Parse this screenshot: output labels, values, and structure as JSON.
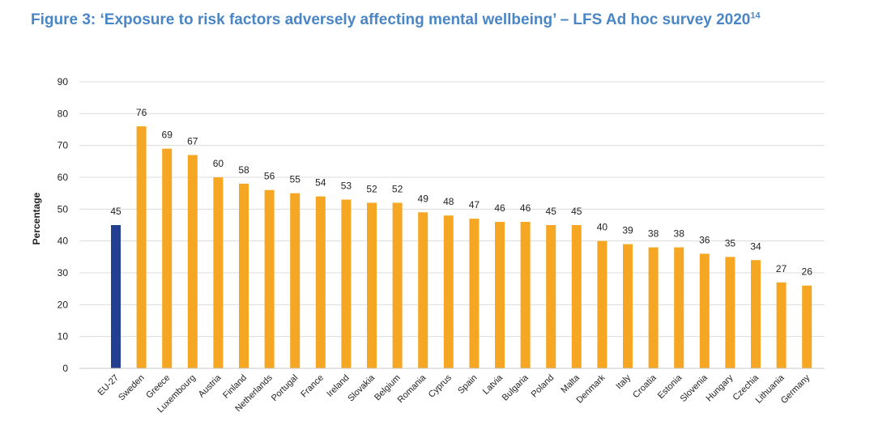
{
  "title": {
    "text": "Figure 3: ‘Exposure to risk factors adversely affecting mental wellbeing’ – LFS Ad hoc survey 2020",
    "footnote": "14"
  },
  "colors": {
    "highlight": "#233f8f",
    "bar": "#f5a623",
    "grid": "#dcdcdc",
    "title": "#4a86c5"
  },
  "chart_data": {
    "type": "bar",
    "title": "Figure 3: ‘Exposure to risk factors adversely affecting mental wellbeing’ – LFS Ad hoc survey 2020",
    "xlabel": "",
    "ylabel": "Percentage",
    "ylim": [
      0,
      90
    ],
    "yticks": [
      0,
      10,
      20,
      30,
      40,
      50,
      60,
      70,
      80,
      90
    ],
    "grid": true,
    "highlight_category": "EU-27",
    "categories": [
      "EU-27",
      "Sweden",
      "Greece",
      "Luxembourg",
      "Austria",
      "Finland",
      "Netherlands",
      "Portugal",
      "France",
      "Ireland",
      "Slovakia",
      "Belgium",
      "Romania",
      "Cyprus",
      "Spain",
      "Latvia",
      "Bulgaria",
      "Poland",
      "Malta",
      "Denmark",
      "Italy",
      "Croatia",
      "Estonia",
      "Slovenia",
      "Hungary",
      "Czechia",
      "Lithuania",
      "Germany"
    ],
    "values": [
      45,
      76,
      69,
      67,
      60,
      58,
      56,
      55,
      54,
      53,
      52,
      52,
      49,
      48,
      47,
      46,
      46,
      45,
      45,
      40,
      39,
      38,
      38,
      36,
      35,
      34,
      27,
      26
    ]
  }
}
